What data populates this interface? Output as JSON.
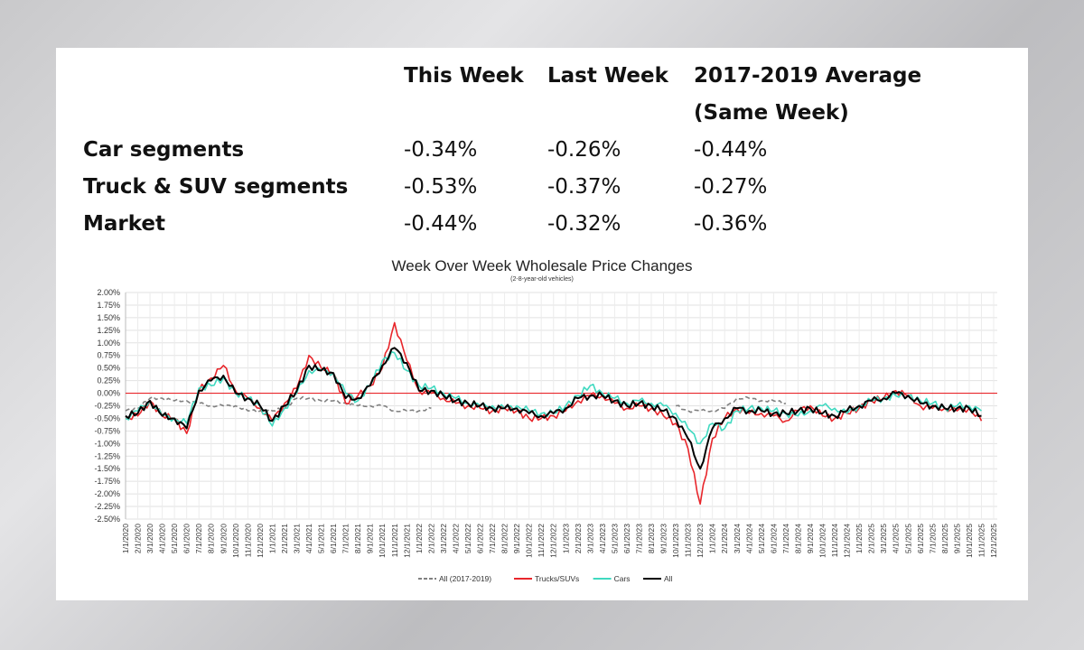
{
  "table": {
    "headers": [
      "This Week",
      "Last Week",
      "2017-2019 Average",
      "(Same Week)"
    ],
    "rows": [
      {
        "label": "Car segments",
        "values": [
          "-0.34%",
          "-0.26%",
          "-0.44%"
        ]
      },
      {
        "label": "Truck & SUV segments",
        "values": [
          "-0.53%",
          "-0.37%",
          "-0.27%"
        ]
      },
      {
        "label": "Market",
        "values": [
          "-0.44%",
          "-0.32%",
          "-0.36%"
        ]
      }
    ]
  },
  "chart_data": {
    "type": "line",
    "title": "Week Over Week Wholesale Price Changes",
    "subtitle": "(2-8-year-old vehicles)",
    "ylim": [
      -2.5,
      2.0
    ],
    "yticks": [
      "2.00%",
      "1.75%",
      "1.50%",
      "1.25%",
      "1.00%",
      "0.75%",
      "0.50%",
      "0.25%",
      "0.00%",
      "-0.25%",
      "-0.50%",
      "-0.75%",
      "-1.00%",
      "-1.25%",
      "-1.50%",
      "-1.75%",
      "-2.00%",
      "-2.25%",
      "-2.50%"
    ],
    "x_start": "1/1/2020",
    "x_end": "12/1/2025",
    "x_interval": "monthly",
    "grid": true,
    "legend": "bottom",
    "colors": {
      "baseline": "#808080",
      "trucks": "#e8262b",
      "cars": "#3fd9c0",
      "all": "#000000",
      "zero": "#e8262b"
    },
    "series": [
      {
        "name": "All (2017-2019)",
        "key": "baseline",
        "dashed": true,
        "values": [
          -0.35,
          -0.3,
          -0.1,
          -0.1,
          -0.15,
          -0.15,
          -0.2,
          -0.25,
          -0.25,
          -0.25,
          -0.35,
          -0.35,
          -0.35,
          -0.3,
          -0.1,
          -0.1,
          -0.15,
          -0.15,
          -0.2,
          -0.25,
          -0.25,
          -0.25,
          -0.35,
          -0.35,
          -0.35,
          -0.3,
          null,
          null,
          null,
          null,
          null,
          null,
          null,
          null,
          null,
          null,
          null,
          null,
          null,
          null,
          null,
          null,
          null,
          null,
          null,
          -0.25,
          -0.35,
          -0.35,
          -0.35,
          -0.3,
          -0.1,
          -0.1,
          -0.15,
          -0.15,
          -0.2,
          null,
          null,
          null,
          null,
          null,
          null,
          null,
          null,
          null,
          null,
          null,
          null,
          null,
          null,
          null,
          null
        ]
      },
      {
        "name": "Trucks/SUVs",
        "key": "trucks",
        "values": [
          -0.5,
          -0.45,
          -0.15,
          -0.45,
          -0.5,
          -0.8,
          0.05,
          0.3,
          0.55,
          0.05,
          -0.1,
          -0.3,
          -0.55,
          -0.2,
          0.1,
          0.75,
          0.5,
          0.4,
          -0.2,
          -0.05,
          0.15,
          0.5,
          1.4,
          0.65,
          0.05,
          0.0,
          -0.1,
          -0.2,
          -0.25,
          -0.3,
          -0.35,
          -0.3,
          -0.35,
          -0.5,
          -0.5,
          -0.45,
          -0.35,
          -0.15,
          -0.05,
          -0.05,
          -0.2,
          -0.3,
          -0.25,
          -0.3,
          -0.45,
          -0.6,
          -1.1,
          -2.2,
          -0.9,
          -0.5,
          -0.3,
          -0.4,
          -0.4,
          -0.45,
          -0.55,
          -0.35,
          -0.25,
          -0.45,
          -0.5,
          -0.4,
          -0.3,
          -0.15,
          -0.1,
          0.05,
          -0.05,
          -0.25,
          -0.3,
          -0.3,
          -0.35,
          -0.3,
          -0.55
        ]
      },
      {
        "name": "Cars",
        "key": "cars",
        "values": [
          -0.5,
          -0.35,
          -0.15,
          -0.45,
          -0.5,
          -0.6,
          0.1,
          0.15,
          0.3,
          0.0,
          -0.1,
          -0.25,
          -0.65,
          -0.3,
          0.0,
          0.45,
          0.45,
          0.4,
          0.0,
          -0.15,
          0.15,
          0.65,
          0.8,
          0.45,
          0.15,
          0.1,
          0.0,
          -0.1,
          -0.2,
          -0.25,
          -0.25,
          -0.3,
          -0.25,
          -0.35,
          -0.4,
          -0.4,
          -0.25,
          -0.05,
          0.15,
          0.0,
          -0.1,
          -0.2,
          -0.15,
          -0.2,
          -0.25,
          -0.4,
          -0.7,
          -1.0,
          -0.6,
          -0.7,
          -0.35,
          -0.3,
          -0.3,
          -0.35,
          -0.4,
          -0.45,
          -0.35,
          -0.25,
          -0.3,
          -0.4,
          -0.25,
          -0.15,
          -0.1,
          -0.05,
          -0.05,
          -0.15,
          -0.2,
          -0.3,
          -0.25,
          -0.25,
          -0.35
        ]
      },
      {
        "name": "All",
        "key": "all",
        "values": [
          -0.45,
          -0.4,
          -0.15,
          -0.45,
          -0.5,
          -0.7,
          0.05,
          0.25,
          0.35,
          0.0,
          -0.1,
          -0.25,
          -0.55,
          -0.25,
          0.05,
          0.55,
          0.45,
          0.4,
          -0.1,
          -0.1,
          0.15,
          0.55,
          0.9,
          0.6,
          0.05,
          0.05,
          -0.05,
          -0.15,
          -0.2,
          -0.25,
          -0.3,
          -0.3,
          -0.3,
          -0.4,
          -0.45,
          -0.4,
          -0.3,
          -0.1,
          -0.05,
          -0.05,
          -0.15,
          -0.25,
          -0.2,
          -0.25,
          -0.35,
          -0.5,
          -0.9,
          -1.5,
          -0.7,
          -0.5,
          -0.3,
          -0.35,
          -0.35,
          -0.4,
          -0.4,
          -0.35,
          -0.3,
          -0.4,
          -0.45,
          -0.35,
          -0.25,
          -0.15,
          -0.1,
          0.0,
          -0.05,
          -0.2,
          -0.25,
          -0.3,
          -0.3,
          -0.3,
          -0.45
        ]
      }
    ]
  }
}
